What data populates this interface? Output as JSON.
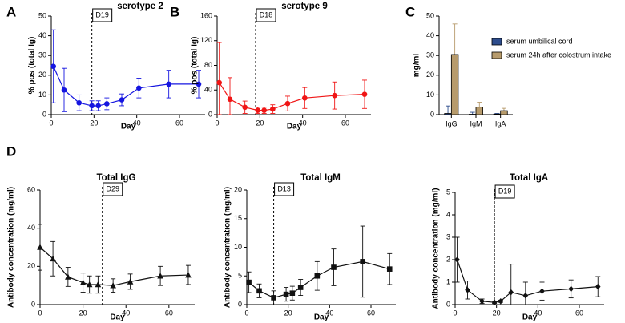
{
  "chart_data": [
    {
      "type": "line",
      "panel_label": "A",
      "title": "serotype 2",
      "xlabel": "Day",
      "ylabel": "% pos (total Ig)",
      "x": [
        1,
        6,
        13,
        19,
        22,
        26,
        33,
        41,
        55,
        69
      ],
      "xlim": [
        0,
        72
      ],
      "xticks": [
        0,
        20,
        40,
        60
      ],
      "ylim": [
        0,
        50
      ],
      "yticks": [
        0,
        10,
        20,
        30,
        40,
        50
      ],
      "vline": {
        "x": 19,
        "label": "D19"
      },
      "series": [
        {
          "color": "#1515e0",
          "marker": "circle",
          "values": [
            24.5,
            12.5,
            6,
            4.5,
            4.5,
            5.5,
            7.5,
            13.5,
            15.5,
            15.5
          ],
          "errors": [
            18.5,
            11,
            4,
            2.5,
            2.5,
            3,
            3,
            5,
            7,
            7
          ]
        }
      ]
    },
    {
      "type": "line",
      "panel_label": "B",
      "title": "serotype 9",
      "xlabel": "Day",
      "ylabel": "% pos (total Ig)",
      "x": [
        1,
        6,
        13,
        19,
        22,
        26,
        33,
        41,
        55,
        69
      ],
      "xlim": [
        0,
        72
      ],
      "xticks": [
        0,
        20,
        40,
        60
      ],
      "ylim": [
        0,
        160
      ],
      "yticks": [
        0,
        40,
        80,
        120,
        160
      ],
      "vline": {
        "x": 18,
        "label": "D18"
      },
      "series": [
        {
          "color": "#f01515",
          "marker": "circle",
          "values": [
            52,
            25,
            12,
            7,
            7,
            9,
            18,
            27,
            31,
            33
          ],
          "errors": [
            65,
            35,
            10,
            5,
            5,
            7,
            12,
            17,
            22,
            23
          ]
        }
      ]
    },
    {
      "type": "bar",
      "panel_label": "C",
      "ylabel": "mg/ml",
      "categories": [
        "IgG",
        "IgM",
        "IgA"
      ],
      "ylim": [
        0,
        50
      ],
      "yticks": [
        0,
        10,
        20,
        30,
        40,
        50
      ],
      "series": [
        {
          "name": "serum umbilical cord",
          "color": "#2d4c8c",
          "values": [
            0.6,
            0.2,
            0.3
          ],
          "errors": [
            3.8,
            1,
            0.3
          ]
        },
        {
          "name": "serum 24h after colostrum intake",
          "color": "#b79b6c",
          "values": [
            30.5,
            3.8,
            2
          ],
          "errors": [
            15.5,
            2.5,
            1.2
          ]
        }
      ]
    },
    {
      "type": "line",
      "panel_label": "D",
      "title": "Total IgG",
      "xlabel": "Day",
      "ylabel": "Antibody concentration (mg/ml)",
      "x": [
        0,
        6,
        13,
        20,
        23,
        27,
        34,
        42,
        56,
        69
      ],
      "xlim": [
        0,
        72
      ],
      "xticks": [
        0,
        20,
        40,
        60
      ],
      "ylim": [
        0,
        60
      ],
      "yticks": [
        0,
        20,
        40,
        60
      ],
      "vline": {
        "x": 29,
        "label": "D29"
      },
      "series": [
        {
          "color": "#111111",
          "marker": "triangle",
          "values": [
            30,
            24,
            14.5,
            11.5,
            10.5,
            10.5,
            10,
            12,
            15,
            15.5
          ],
          "errors": [
            12,
            9,
            5,
            5,
            4.5,
            4.5,
            3.5,
            4,
            5,
            5
          ]
        }
      ]
    },
    {
      "type": "line",
      "title": "Total IgM",
      "xlabel": "Day",
      "ylabel": "Antibody concentration (mg/ml)",
      "x": [
        1,
        6,
        13,
        19,
        22,
        26,
        34,
        42,
        56,
        69
      ],
      "xlim": [
        0,
        72
      ],
      "xticks": [
        0,
        20,
        40,
        60
      ],
      "ylim": [
        0,
        20
      ],
      "yticks": [
        0,
        5,
        10,
        15,
        20
      ],
      "vline": {
        "x": 13,
        "label": "D13"
      },
      "series": [
        {
          "color": "#111111",
          "marker": "square",
          "values": [
            3.9,
            2.4,
            1.2,
            1.8,
            2,
            3,
            5,
            6.5,
            7.5,
            6.2
          ],
          "errors": [
            1.8,
            1.2,
            1.2,
            1.2,
            1.2,
            1.4,
            2.5,
            3.2,
            6.2,
            2.7
          ]
        }
      ]
    },
    {
      "type": "line",
      "title": "Total IgA",
      "xlabel": "Day",
      "ylabel": "Antibody concentration (mg/ml)",
      "x": [
        1,
        6,
        13,
        19,
        22,
        27,
        34,
        42,
        56,
        69
      ],
      "xlim": [
        0,
        72
      ],
      "xticks": [
        0,
        20,
        40,
        60
      ],
      "ylim": [
        0,
        5
      ],
      "yticks": [
        0,
        1,
        2,
        3,
        4,
        5
      ],
      "vline": {
        "x": 19,
        "label": "D19"
      },
      "series": [
        {
          "color": "#111111",
          "marker": "diamond",
          "values": [
            2,
            0.65,
            0.15,
            0.1,
            0.15,
            0.55,
            0.4,
            0.6,
            0.7,
            0.8
          ],
          "errors": [
            1,
            0.4,
            0.1,
            0.05,
            0.05,
            1.25,
            0.6,
            0.4,
            0.4,
            0.45
          ]
        }
      ]
    }
  ]
}
